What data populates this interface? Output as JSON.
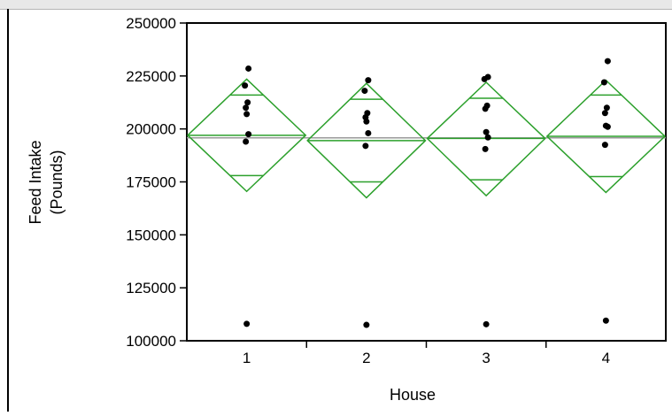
{
  "chart_data": {
    "type": "scatter",
    "title": "",
    "xlabel": "House",
    "ylabel": "Feed Intake (Pounds)",
    "ylabel_lines": [
      "Feed Intake",
      "(Pounds)"
    ],
    "categories": [
      "1",
      "2",
      "3",
      "4"
    ],
    "ylim": [
      100000,
      250000
    ],
    "yticks": [
      {
        "value": 100000,
        "label": "100000"
      },
      {
        "value": 125000,
        "label": "125000"
      },
      {
        "value": 150000,
        "label": "150000"
      },
      {
        "value": 175000,
        "label": "175000"
      },
      {
        "value": 200000,
        "label": "200000"
      },
      {
        "value": 225000,
        "label": "225000"
      },
      {
        "value": 250000,
        "label": "250000"
      }
    ],
    "grand_mean": 195800,
    "points": [
      {
        "house": "1",
        "values": [
          228500,
          220500,
          212500,
          210000,
          207000,
          197500,
          194000,
          108000
        ]
      },
      {
        "house": "2",
        "values": [
          223000,
          218000,
          207500,
          205500,
          203500,
          198000,
          192000,
          107500
        ]
      },
      {
        "house": "3",
        "values": [
          224500,
          223500,
          211000,
          209500,
          198500,
          196000,
          190500,
          107800
        ]
      },
      {
        "house": "4",
        "values": [
          232000,
          222000,
          210000,
          207500,
          201500,
          201000,
          192500,
          109500
        ]
      }
    ],
    "means_diamonds": [
      {
        "house": "1",
        "mean": 197000,
        "lower_ci": 170500,
        "upper_ci": 223500,
        "lower_overlap": 178000,
        "upper_overlap": 216000
      },
      {
        "house": "2",
        "mean": 194500,
        "lower_ci": 167500,
        "upper_ci": 221500,
        "lower_overlap": 175000,
        "upper_overlap": 214000
      },
      {
        "house": "3",
        "mean": 195500,
        "lower_ci": 168500,
        "upper_ci": 222000,
        "lower_overlap": 176000,
        "upper_overlap": 214500
      },
      {
        "house": "4",
        "mean": 196500,
        "lower_ci": 170000,
        "upper_ci": 223000,
        "lower_overlap": 177500,
        "upper_overlap": 216000
      }
    ],
    "grid": false,
    "colors": {
      "diamond": "#2ca02c",
      "points": "#000000",
      "grand_mean": "#999999",
      "axis": "#000000"
    }
  }
}
